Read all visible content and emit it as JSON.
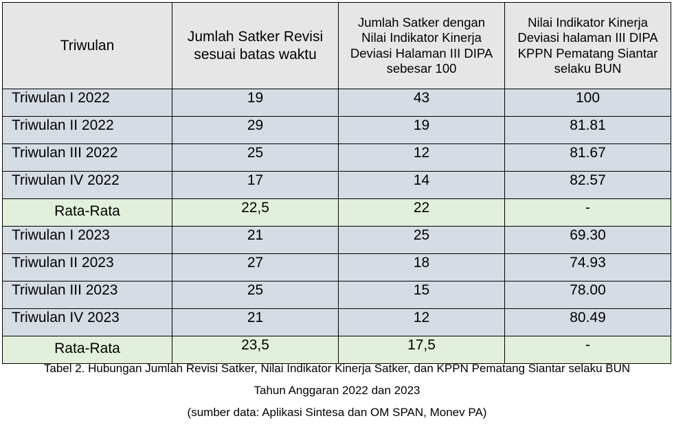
{
  "table": {
    "headers": [
      "Triwulan",
      "Jumlah Satker Revisi sesuai batas waktu",
      "Jumlah Satker dengan Nilai Indikator Kinerja Deviasi Halaman III DIPA sebesar 100",
      "Nilai Indikator Kinerja Deviasi halaman III DIPA KPPN Pematang Siantar selaku BUN"
    ],
    "rows": [
      {
        "kind": "quarter",
        "cells": [
          "Triwulan I 2022",
          "19",
          "43",
          "100"
        ]
      },
      {
        "kind": "quarter",
        "cells": [
          "Triwulan II 2022",
          "29",
          "19",
          "81.81"
        ]
      },
      {
        "kind": "quarter",
        "cells": [
          "Triwulan III 2022",
          "25",
          "12",
          "81.67"
        ]
      },
      {
        "kind": "quarter",
        "cells": [
          "Triwulan IV 2022",
          "17",
          "14",
          "82.57"
        ]
      },
      {
        "kind": "average",
        "cells": [
          "Rata-Rata",
          "22,5",
          "22",
          "-"
        ]
      },
      {
        "kind": "quarter",
        "cells": [
          "Triwulan I 2023",
          "21",
          "25",
          "69.30"
        ]
      },
      {
        "kind": "quarter",
        "cells": [
          "Triwulan II 2023",
          "27",
          "18",
          "74.93"
        ]
      },
      {
        "kind": "quarter",
        "cells": [
          "Triwulan III 2023",
          "25",
          "15",
          "78.00"
        ]
      },
      {
        "kind": "quarter",
        "cells": [
          "Triwulan IV 2023",
          "21",
          "12",
          "80.49"
        ]
      },
      {
        "kind": "average",
        "cells": [
          "Rata-Rata",
          "23,5",
          "17,5",
          "-"
        ]
      }
    ]
  },
  "caption": {
    "line1": "Tabel 2. Hubungan Jumlah Revisi Satker, Nilai Indikator Kinerja Satker, dan KPPN Pematang Siantar selaku BUN",
    "line2": "Tahun Anggaran 2022 dan 2023",
    "source": "(sumber data: Aplikasi Sintesa dan OM SPAN, Monev PA)"
  },
  "colors": {
    "header_bg": "#e7e6e6",
    "quarter_row_bg": "#d6dce4",
    "average_row_bg": "#e2efda"
  }
}
